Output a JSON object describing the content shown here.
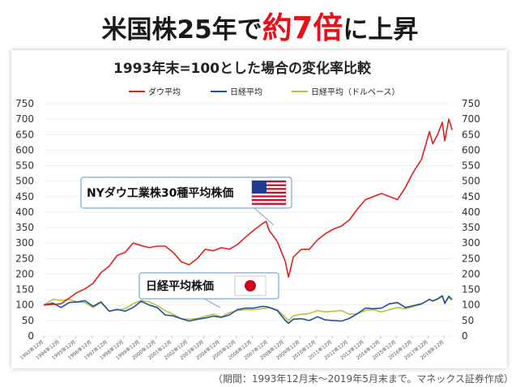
{
  "headline": {
    "before": "米国株25年で",
    "accent": "約7倍",
    "after": "に上昇"
  },
  "source_note": "（期間：1993年12月末～2019年5月末まで。マネックス証券作成）",
  "callouts": {
    "us": "NYダウ工業株30種平均株価",
    "jp": "日経平均株価"
  },
  "colors": {
    "dow": "#e3201b",
    "nikkei": "#1f4fa0",
    "nikkei_usd": "#b5c43a",
    "headline_accent": "#e5121b"
  },
  "chart_data": {
    "type": "line",
    "title": "1993年末=100とした場合の変化率比較",
    "ylim": [
      0,
      750
    ],
    "y_ticks": [
      0,
      50,
      100,
      150,
      200,
      250,
      300,
      350,
      400,
      450,
      500,
      550,
      600,
      650,
      700,
      750
    ],
    "x_ticks": [
      "1993年12月",
      "1994年12月",
      "1995年12月",
      "1996年12月",
      "1997年12月",
      "1998年12月",
      "1999年12月",
      "2000年12月",
      "2001年12月",
      "2002年12月",
      "2003年12月",
      "2004年12月",
      "2005年12月",
      "2006年12月",
      "2007年12月",
      "2008年12月",
      "2009年12月",
      "2010年12月",
      "2011年12月",
      "2012年12月",
      "2013年12月",
      "2014年12月",
      "2015年12月",
      "2016年12月",
      "2017年12月",
      "2018年12月"
    ],
    "x": [
      1993.92,
      1994.5,
      1995.0,
      1995.5,
      1996.0,
      1996.5,
      1997.0,
      1997.5,
      1998.0,
      1998.5,
      1999.0,
      1999.5,
      2000.0,
      2000.5,
      2001.0,
      2001.5,
      2002.0,
      2002.5,
      2003.0,
      2003.5,
      2004.0,
      2004.5,
      2005.0,
      2005.5,
      2006.0,
      2006.5,
      2007.0,
      2007.5,
      2007.8,
      2008.0,
      2008.5,
      2009.0,
      2009.2,
      2009.5,
      2010.0,
      2010.5,
      2011.0,
      2011.5,
      2012.0,
      2012.5,
      2013.0,
      2013.5,
      2014.0,
      2014.5,
      2015.0,
      2015.5,
      2016.0,
      2016.5,
      2017.0,
      2017.5,
      2018.0,
      2018.2,
      2018.5,
      2018.8,
      2018.95,
      2019.2,
      2019.41
    ],
    "series": [
      {
        "name": "ダウ平均",
        "values": [
          100,
          102,
          104,
          122,
          140,
          152,
          170,
          205,
          225,
          260,
          270,
          300,
          292,
          285,
          290,
          290,
          270,
          240,
          230,
          250,
          280,
          275,
          285,
          280,
          295,
          318,
          340,
          360,
          370,
          340,
          305,
          240,
          190,
          255,
          280,
          280,
          310,
          330,
          345,
          355,
          375,
          410,
          440,
          450,
          460,
          450,
          440,
          480,
          530,
          570,
          660,
          620,
          650,
          690,
          630,
          700,
          665
        ]
      },
      {
        "name": "日経平均",
        "values": [
          100,
          106,
          92,
          108,
          110,
          114,
          96,
          110,
          80,
          86,
          80,
          92,
          112,
          100,
          92,
          68,
          65,
          56,
          48,
          54,
          58,
          64,
          60,
          68,
          85,
          90,
          90,
          95,
          95,
          92,
          82,
          50,
          41,
          54,
          56,
          50,
          62,
          52,
          50,
          48,
          57,
          72,
          90,
          88,
          90,
          104,
          108,
          92,
          98,
          104,
          118,
          113,
          120,
          130,
          105,
          128,
          118
        ]
      },
      {
        "name": "日経平均（ドルベース）",
        "values": [
          100,
          118,
          115,
          118,
          110,
          108,
          92,
          108,
          80,
          84,
          88,
          104,
          115,
          110,
          98,
          82,
          70,
          56,
          54,
          56,
          64,
          70,
          62,
          75,
          82,
          85,
          85,
          88,
          90,
          92,
          85,
          60,
          50,
          65,
          70,
          72,
          82,
          78,
          80,
          82,
          70,
          72,
          82,
          85,
          78,
          85,
          92,
          88,
          95,
          103,
          118,
          113,
          118,
          128,
          108,
          124,
          116
        ]
      }
    ]
  }
}
